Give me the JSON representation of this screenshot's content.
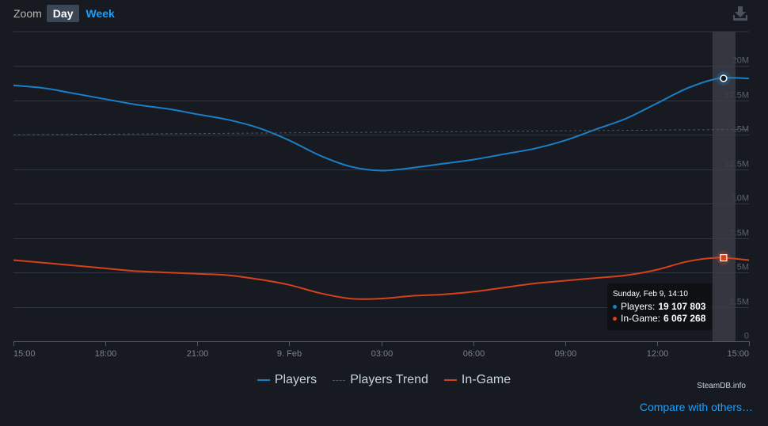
{
  "zoom": {
    "label": "Zoom",
    "options": [
      "Day",
      "Week"
    ],
    "selected": "Day"
  },
  "download_icon": "download-icon",
  "legend": [
    {
      "name": "Players",
      "color": "#1a7fc6",
      "style": "solid"
    },
    {
      "name": "Players Trend",
      "color": "#4b5a5a",
      "style": "dashed"
    },
    {
      "name": "In-Game",
      "color": "#d5411a",
      "style": "solid"
    }
  ],
  "credit": "SteamDB.info",
  "compare_link": "Compare with others…",
  "tooltip": {
    "date": "Sunday, Feb 9, 14:10",
    "players_label": "Players:",
    "players_value": "19 107 803",
    "ingame_label": "In-Game:",
    "ingame_value": "6 067 268"
  },
  "chart_data": {
    "type": "line",
    "x_ticks": [
      "15:00",
      "18:00",
      "21:00",
      "9. Feb",
      "03:00",
      "06:00",
      "09:00",
      "12:00",
      "15:00"
    ],
    "x_range_hours": [
      0,
      24
    ],
    "y_ticks": [
      0,
      2500000,
      5000000,
      7500000,
      10000000,
      12500000,
      15000000,
      17500000,
      20000000
    ],
    "y_tick_labels": [
      "0",
      "2.5M",
      "5M",
      "7.5M",
      "10M",
      "12.5M",
      "15M",
      "17.5M",
      "20M"
    ],
    "ylim": [
      0,
      22500000
    ],
    "grid": true,
    "highlight_time_hours": 23.17,
    "series": [
      {
        "name": "Players",
        "color": "#1a7fc6",
        "points": [
          [
            0,
            18.6
          ],
          [
            1,
            18.4
          ],
          [
            2,
            18.0
          ],
          [
            3,
            17.6
          ],
          [
            4,
            17.2
          ],
          [
            5,
            16.9
          ],
          [
            6,
            16.5
          ],
          [
            7,
            16.1
          ],
          [
            8,
            15.5
          ],
          [
            9,
            14.6
          ],
          [
            10,
            13.5
          ],
          [
            11,
            12.7
          ],
          [
            12,
            12.4
          ],
          [
            13,
            12.6
          ],
          [
            14,
            12.9
          ],
          [
            15,
            13.2
          ],
          [
            16,
            13.6
          ],
          [
            17,
            14.0
          ],
          [
            18,
            14.6
          ],
          [
            19,
            15.4
          ],
          [
            20,
            16.2
          ],
          [
            21,
            17.3
          ],
          [
            22,
            18.4
          ],
          [
            23,
            19.1
          ],
          [
            24,
            19.1
          ]
        ]
      },
      {
        "name": "Players Trend",
        "color": "#4b5a5a",
        "points": [
          [
            0,
            15.0
          ],
          [
            12,
            15.2
          ],
          [
            24,
            15.4
          ]
        ]
      },
      {
        "name": "In-Game",
        "color": "#d5411a",
        "points": [
          [
            0,
            5.9
          ],
          [
            1,
            5.7
          ],
          [
            2,
            5.5
          ],
          [
            3,
            5.3
          ],
          [
            4,
            5.1
          ],
          [
            5,
            5.0
          ],
          [
            6,
            4.9
          ],
          [
            7,
            4.8
          ],
          [
            8,
            4.5
          ],
          [
            9,
            4.1
          ],
          [
            10,
            3.5
          ],
          [
            11,
            3.1
          ],
          [
            12,
            3.1
          ],
          [
            13,
            3.3
          ],
          [
            14,
            3.4
          ],
          [
            15,
            3.6
          ],
          [
            16,
            3.9
          ],
          [
            17,
            4.2
          ],
          [
            18,
            4.4
          ],
          [
            19,
            4.6
          ],
          [
            20,
            4.8
          ],
          [
            21,
            5.2
          ],
          [
            22,
            5.8
          ],
          [
            23,
            6.07
          ],
          [
            24,
            5.9
          ]
        ]
      }
    ],
    "highlight_values": {
      "Players": 19107803,
      "In-Game": 6067268
    }
  }
}
